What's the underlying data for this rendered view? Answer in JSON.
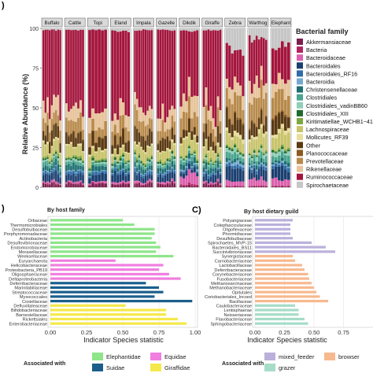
{
  "figure": {
    "panel_a_label": ")",
    "panel_b_label": ")",
    "panel_c_label": "C)"
  },
  "chart_data": [
    {
      "type": "bar",
      "stacked": true,
      "panel": "A",
      "ylabel": "Relative Abundance (%)",
      "ylim": [
        0,
        100
      ],
      "yticks": [
        0,
        25,
        50,
        75,
        100
      ],
      "hosts": [
        "Buffalo",
        "Cattle",
        "Topi",
        "Eland",
        "Impala",
        "Gazelle",
        "Dikdik",
        "Giraffe",
        "Zebra",
        "Warthog",
        "Elephant"
      ],
      "samples_per_host": [
        9,
        8,
        6,
        7,
        9,
        8,
        7,
        8,
        7,
        8,
        6
      ],
      "legend_title": "Bacterial family",
      "legend_position": "right",
      "families": [
        "Akkermansiaceae",
        "Bacteria",
        "Bacteroidaceae",
        "Bacteroidales",
        "Bacteroidales_RF16",
        "Bacteroidia",
        "Christensenellaceae",
        "Clostridiales",
        "Clostridiales_vadinBB60",
        "Clostridiales_XIII",
        "Kiritimatiellae_WCHB1−41",
        "Lachnospiraceae",
        "Mollicutes_RF39",
        "Other",
        "Planococcaceae",
        "Prevotellaceae",
        "Rikenellaceae",
        "Ruminococcaceae",
        "Spirochaetaceae"
      ],
      "colors": [
        "#7b1f4e",
        "#b2245f",
        "#dd5fae",
        "#1b3f70",
        "#2f6da8",
        "#74a9cf",
        "#1d6f72",
        "#49a58e",
        "#8fcfb7",
        "#1f6b2e",
        "#7da83e",
        "#c9c46a",
        "#e9dd9c",
        "#5b3a12",
        "#8c5a1e",
        "#b98a4a",
        "#e8c49a",
        "#a4143c",
        "#c6c6c6"
      ],
      "host_profiles": [
        [
          2,
          0.5,
          1,
          4,
          1.5,
          0.5,
          3,
          2,
          1,
          1,
          1,
          6,
          1,
          7,
          0.5,
          8,
          8,
          50,
          1
        ],
        [
          2,
          0.5,
          1,
          4,
          1.5,
          0.5,
          3,
          2,
          1,
          1,
          1,
          6,
          1,
          7,
          0.5,
          8,
          8,
          50,
          1
        ],
        [
          2,
          0.5,
          1,
          4,
          1.5,
          0.5,
          3,
          2,
          1,
          1,
          1,
          6,
          1,
          7,
          0.5,
          8,
          8,
          50,
          1
        ],
        [
          2,
          0.5,
          1,
          5,
          1.5,
          0.5,
          3,
          2,
          1,
          1,
          1,
          6,
          1,
          7,
          0.5,
          8,
          8,
          48,
          2
        ],
        [
          2,
          0.5,
          1,
          4,
          1.5,
          0.5,
          3,
          2,
          1,
          1,
          1,
          6,
          1,
          7,
          0.5,
          8,
          8,
          50,
          1
        ],
        [
          2,
          0.5,
          1,
          4,
          1.5,
          0.5,
          3,
          2,
          1,
          1,
          1,
          6,
          1,
          7,
          0.5,
          8,
          8,
          50,
          1
        ],
        [
          1,
          1,
          8,
          3,
          1.5,
          1,
          3,
          2,
          1,
          1,
          1,
          10,
          1,
          6,
          0.5,
          10,
          10,
          38,
          2
        ],
        [
          2,
          0.5,
          1,
          4,
          1.5,
          0.5,
          3,
          2,
          1,
          1,
          1,
          6,
          1,
          7,
          0.5,
          8,
          8,
          49,
          1
        ],
        [
          0.5,
          0.5,
          3,
          8,
          2,
          2,
          2,
          3,
          2,
          1,
          1,
          6,
          2,
          10,
          1,
          12,
          8,
          22,
          14
        ],
        [
          0.5,
          0.5,
          4,
          6,
          2,
          1,
          2,
          3,
          2,
          1,
          1,
          8,
          2,
          8,
          1,
          14,
          10,
          28,
          7
        ],
        [
          0.5,
          0.5,
          4,
          7,
          2,
          1,
          2,
          3,
          2,
          1,
          1,
          8,
          2,
          9,
          1,
          14,
          8,
          24,
          10
        ]
      ]
    },
    {
      "type": "bar",
      "orientation": "horizontal",
      "panel": "B",
      "title": "By host family",
      "xlabel": "Indicator Species statistic",
      "xlim": [
        0,
        1.0
      ],
      "xticks": [
        "0.00",
        "0.25",
        "0.50",
        "0.75",
        "1.00"
      ],
      "categories": [
        "Orbaceae",
        "Thermomicrobiales",
        "Desulfobulbaceae",
        "Porphyromonadaceae",
        "Actinobacteria",
        "Desulfovibrionaceae",
        "Endomicrobiaceae",
        "Moraxellaceae",
        "Weeksellaceae",
        "Euryarchaeota",
        "Helicobacteraceae",
        "Proteobacteria_PB19",
        "Oligosphaeraceae",
        "Deltaproteobacteria",
        "Deferribacteraceae",
        "Marinilabiliaceae",
        "Streptococcaceae",
        "Myxococcales",
        "Coxiellaceae",
        "Defluviitaleaceae",
        "Bifidobacteriaceae",
        "Barnesiellaceae",
        "Rickettsiales",
        "Enterobacteriaceae"
      ],
      "values": [
        0.5,
        0.58,
        0.72,
        0.72,
        0.7,
        0.73,
        0.76,
        0.73,
        0.85,
        0.45,
        0.78,
        0.75,
        0.82,
        0.9,
        0.66,
        0.75,
        0.78,
        0.72,
        0.98,
        0.52,
        0.8,
        0.8,
        0.88,
        0.94
      ],
      "groups": [
        "Elephantidae",
        "Elephantidae",
        "Elephantidae",
        "Elephantidae",
        "Elephantidae",
        "Elephantidae",
        "Elephantidae",
        "Elephantidae",
        "Elephantidae",
        "Equidae",
        "Equidae",
        "Equidae",
        "Equidae",
        "Equidae",
        "Suidae",
        "Suidae",
        "Suidae",
        "Suidae",
        "Suidae",
        "Giraffidae",
        "Giraffidae",
        "Giraffidae",
        "Giraffidae",
        "Giraffidae"
      ],
      "legend_title": "Associated with",
      "legend_position": "bottom",
      "legend": [
        {
          "name": "Elephantidae",
          "color": "#8ee58a"
        },
        {
          "name": "Equidae",
          "color": "#f07fe0"
        },
        {
          "name": "Suidae",
          "color": "#1b5e8c"
        },
        {
          "name": "Giraffidae",
          "color": "#f5e84a"
        }
      ]
    },
    {
      "type": "bar",
      "orientation": "horizontal",
      "panel": "C",
      "title": "By host dietary guild",
      "xlabel": "Indicator Species statistic",
      "xlim": [
        0,
        1.0
      ],
      "xticks": [
        "0.00",
        "0.25",
        "0.50",
        "0.75"
      ],
      "categories": [
        "Polyangiaceae",
        "Colepfasciculaceae",
        "Oligoflexaceae",
        "Phormidiaceae",
        "Desulfobulbaceae",
        "Spirochaetes_MVP-15",
        "Bacteroidales_BS11",
        "Succinivibrionaceae",
        "Synergistaceae",
        "Carnobacteriaceae",
        "Lactobacillaceae",
        "Deferribacteraceae",
        "Corynebacteriaceae",
        "Fusobacteriaceae",
        "Methanosarcinaceae",
        "Methanobacteriaceae",
        "Opitutales",
        "Coriobacteriales_Incsed",
        "Bacillaceae",
        "Caulobacteraceae",
        "Lentisphaerae",
        "Neisseriaceae",
        "Flavobacteriaceae",
        "Sphingobacteriaceae"
      ],
      "values": [
        0.32,
        0.3,
        0.3,
        0.3,
        0.32,
        0.48,
        0.6,
        0.68,
        0.32,
        0.34,
        0.4,
        0.42,
        0.45,
        0.46,
        0.48,
        0.5,
        0.52,
        0.55,
        0.62,
        0.34,
        0.37,
        0.37,
        0.42,
        0.45
      ],
      "groups": [
        "mixed_feeder",
        "mixed_feeder",
        "mixed_feeder",
        "mixed_feeder",
        "mixed_feeder",
        "mixed_feeder",
        "mixed_feeder",
        "mixed_feeder",
        "browser",
        "browser",
        "browser",
        "browser",
        "browser",
        "browser",
        "browser",
        "browser",
        "browser",
        "browser",
        "browser",
        "grazer",
        "grazer",
        "grazer",
        "grazer",
        "grazer"
      ],
      "legend_title": "Associated with",
      "legend_position": "bottom",
      "legend": [
        {
          "name": "mixed_feeder",
          "color": "#bbb0dc"
        },
        {
          "name": "browser",
          "color": "#f7b98f"
        },
        {
          "name": "grazer",
          "color": "#a6dcc8"
        }
      ]
    }
  ]
}
